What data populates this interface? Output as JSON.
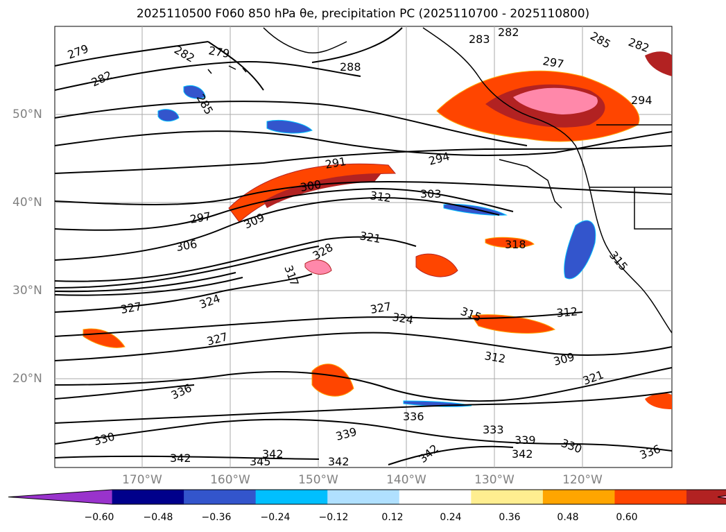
{
  "title": "2025110500 F060 850 hPa θe, precipitation PC (2025110700 - 2025110800)",
  "map": {
    "lat_labels": [
      "50°N",
      "40°N",
      "30°N",
      "20°N"
    ],
    "lon_labels": [
      "170°W",
      "160°W",
      "150°W",
      "140°W",
      "130°W",
      "120°W"
    ],
    "contour_labels": [
      "279",
      "282",
      "279",
      "282",
      "285",
      "288",
      "282",
      "283",
      "285",
      "282",
      "297",
      "294",
      "291",
      "294",
      "300",
      "312",
      "303",
      "297",
      "309",
      "306",
      "321",
      "318",
      "315",
      "317",
      "328",
      "324",
      "327",
      "327",
      "324",
      "315",
      "312",
      "312",
      "309",
      "321",
      "336",
      "327",
      "330",
      "342",
      "339",
      "336",
      "333",
      "339",
      "330",
      "336",
      "342",
      "342",
      "345",
      "342",
      "342"
    ]
  },
  "colorbar": {
    "ticks": [
      "−0.60",
      "−0.48",
      "−0.36",
      "−0.24",
      "−0.12",
      "0.12",
      "0.24",
      "0.36",
      "0.48",
      "0.60"
    ],
    "colors": [
      "#9933cc",
      "#00008b",
      "#3355cc",
      "#00bfff",
      "#b0e0ff",
      "#ffffff",
      "#ffee90",
      "#ffa500",
      "#ff4500",
      "#b22222",
      "#ff88aa"
    ]
  }
}
